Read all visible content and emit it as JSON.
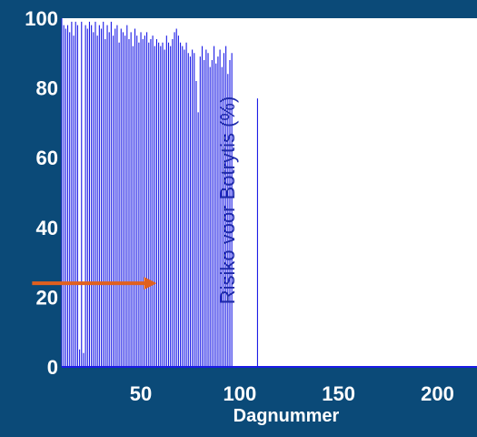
{
  "colors": {
    "background": "#0B4A78",
    "plot_area": "#FFFFFF",
    "bars": "#1A1AE6",
    "arrow": "#E0601F",
    "text": "#FFFFFF",
    "overlay_text": "#1E2AAA"
  },
  "chart_data": {
    "type": "bar",
    "xlabel": "Dagnummer",
    "overlay_text": "Risiko voor Botrytis (%)",
    "xlim": [
      10,
      220
    ],
    "ylim": [
      0,
      100
    ],
    "xticks": [
      50,
      100,
      150,
      200
    ],
    "yticks": [
      0,
      20,
      40,
      60,
      80,
      100
    ],
    "grid": false,
    "legend": "none",
    "annotation": {
      "type": "arrow",
      "from": [
        -5,
        24
      ],
      "to": [
        58,
        24
      ]
    },
    "x": [
      11,
      12,
      13,
      14,
      15,
      16,
      17,
      18,
      19,
      20,
      21,
      22,
      23,
      24,
      25,
      26,
      27,
      28,
      29,
      30,
      31,
      32,
      33,
      34,
      35,
      36,
      37,
      38,
      39,
      40,
      41,
      42,
      43,
      44,
      45,
      46,
      47,
      48,
      49,
      50,
      51,
      52,
      53,
      54,
      55,
      56,
      57,
      58,
      59,
      60,
      61,
      62,
      63,
      64,
      65,
      66,
      67,
      68,
      69,
      70,
      71,
      72,
      73,
      74,
      75,
      76,
      77,
      78,
      79,
      80,
      81,
      82,
      83,
      84,
      85,
      86,
      87,
      88,
      89,
      90,
      91,
      92,
      93,
      94,
      95,
      96,
      109
    ],
    "values": [
      98,
      97,
      98,
      96,
      99,
      95,
      99,
      98,
      5,
      99,
      4,
      98,
      97,
      99,
      98,
      96,
      99,
      95,
      98,
      97,
      99,
      94,
      98,
      96,
      99,
      95,
      97,
      98,
      93,
      97,
      96,
      95,
      98,
      94,
      96,
      92,
      97,
      95,
      93,
      96,
      94,
      95,
      96,
      93,
      94,
      95,
      92,
      94,
      93,
      92,
      93,
      91,
      95,
      93,
      92,
      94,
      96,
      97,
      95,
      93,
      92,
      91,
      93,
      90,
      89,
      91,
      90,
      82,
      73,
      89,
      92,
      88,
      91,
      90,
      86,
      88,
      92,
      87,
      89,
      91,
      86,
      90,
      92,
      84,
      88,
      90,
      77
    ]
  }
}
